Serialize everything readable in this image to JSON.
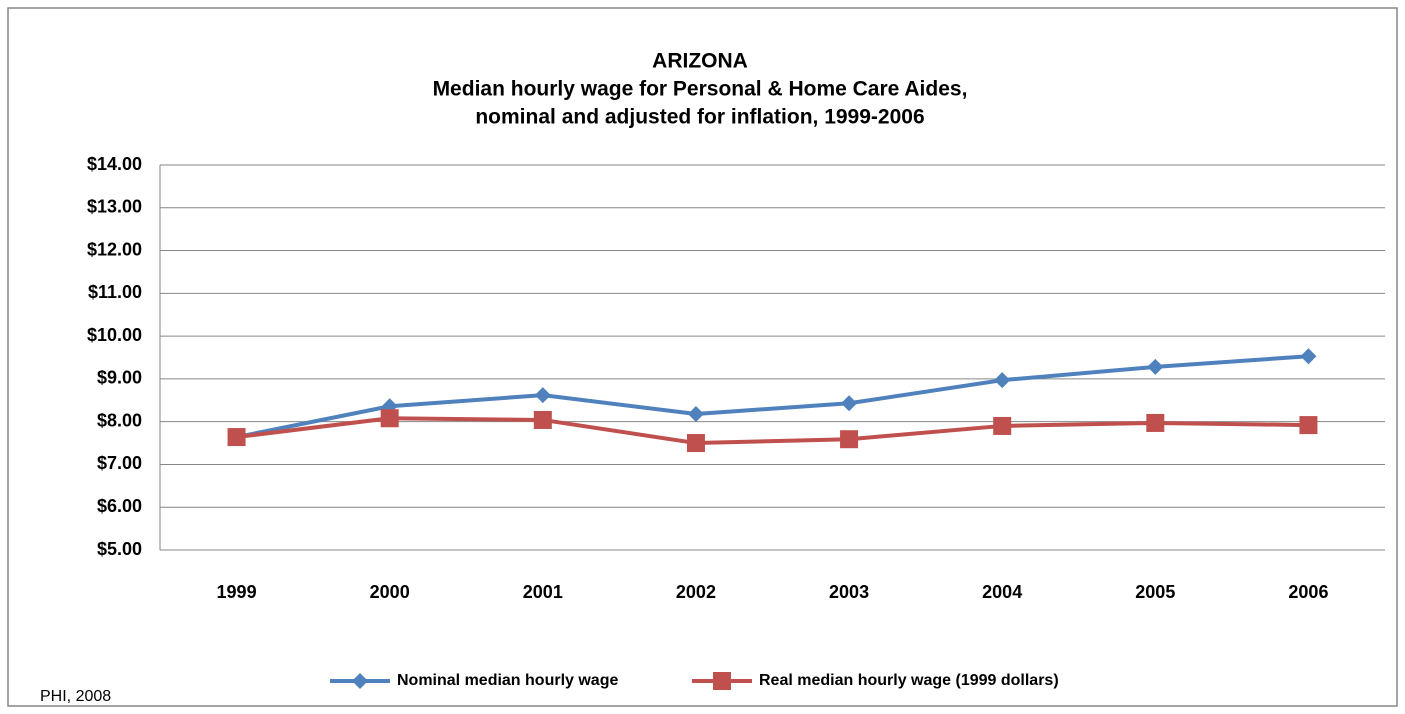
{
  "chart_data": {
    "type": "line",
    "title": [
      "ARIZONA",
      "Median hourly wage for Personal & Home Care Aides,",
      "nominal and adjusted for inflation, 1999-2006"
    ],
    "source": "PHI, 2008",
    "categories": [
      "1999",
      "2000",
      "2001",
      "2002",
      "2003",
      "2004",
      "2005",
      "2006"
    ],
    "series": [
      {
        "name": "Nominal median hourly wage",
        "color": "#4f81bd",
        "marker": "diamond",
        "values": [
          7.64,
          8.36,
          8.62,
          8.18,
          8.43,
          8.97,
          9.28,
          9.53
        ]
      },
      {
        "name": "Real median hourly wage (1999 dollars)",
        "color": "#c0504d",
        "marker": "square",
        "values": [
          7.64,
          8.08,
          8.04,
          7.5,
          7.59,
          7.9,
          7.97,
          7.92
        ]
      }
    ],
    "ylim": [
      5,
      14
    ],
    "yticks": [
      {
        "value": 5,
        "label": "$5.00"
      },
      {
        "value": 6,
        "label": "$6.00"
      },
      {
        "value": 7,
        "label": "$7.00"
      },
      {
        "value": 8,
        "label": "$8.00"
      },
      {
        "value": 9,
        "label": "$9.00"
      },
      {
        "value": 10,
        "label": "$10.00"
      },
      {
        "value": 11,
        "label": "$11.00"
      },
      {
        "value": 12,
        "label": "$12.00"
      },
      {
        "value": 13,
        "label": "$13.00"
      },
      {
        "value": 14,
        "label": "$14.00"
      }
    ],
    "grid": true,
    "legend": "bottom"
  }
}
